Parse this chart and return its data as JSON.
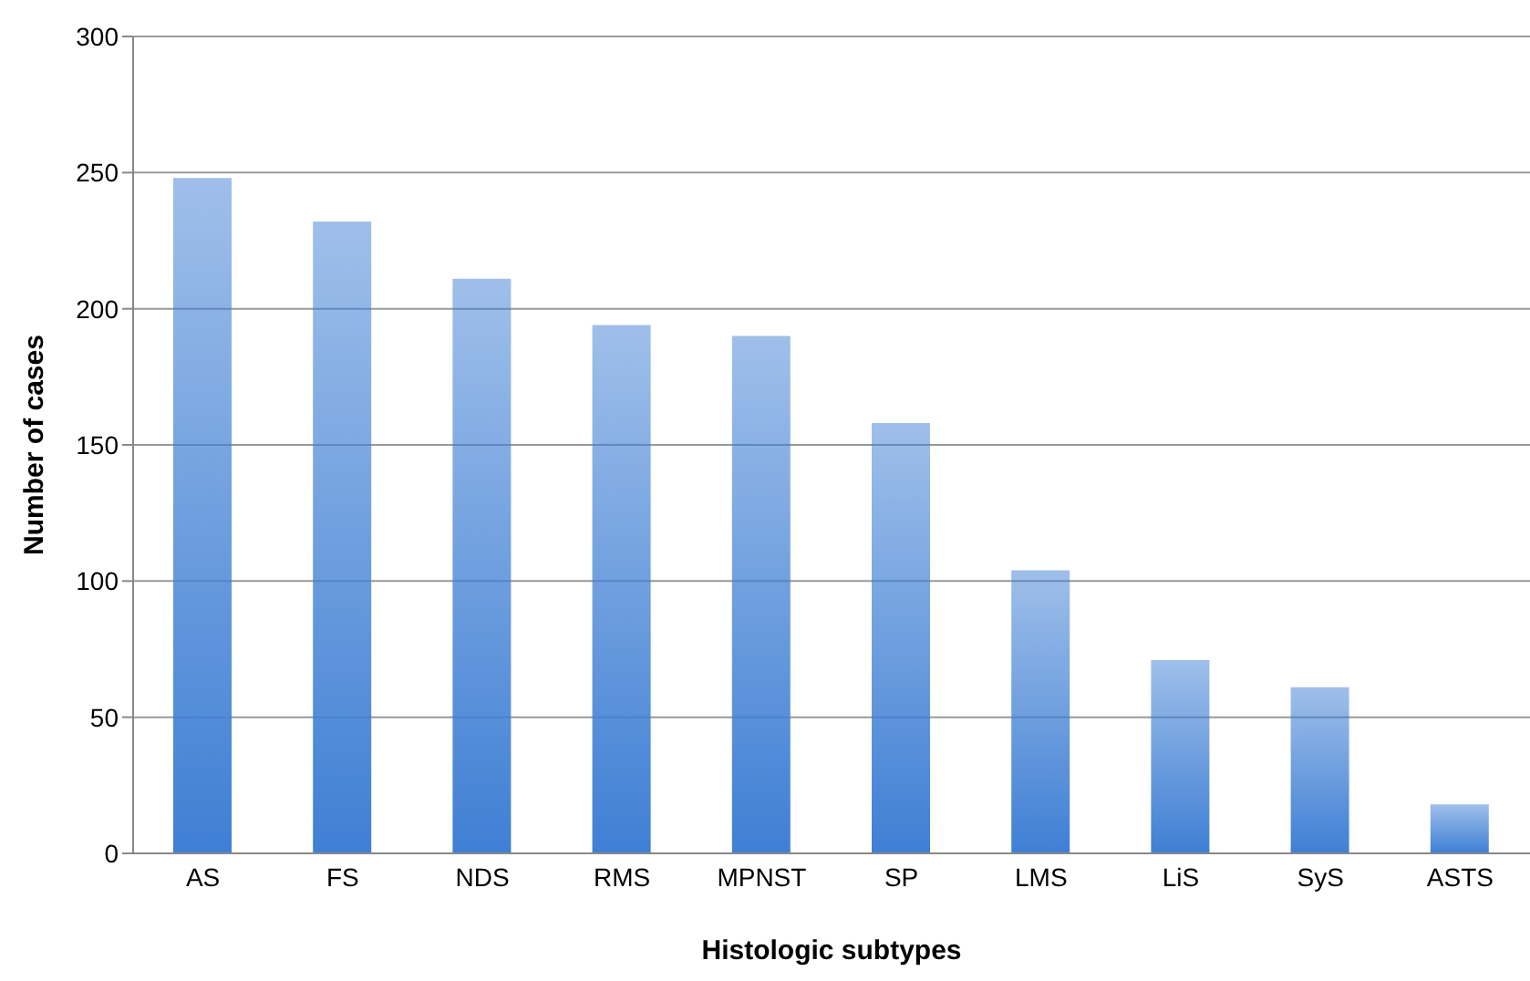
{
  "chart_data": {
    "type": "bar",
    "xlabel": "Histologic subtypes",
    "ylabel": "Number of cases",
    "categories": [
      "AS",
      "FS",
      "NDS",
      "RMS",
      "MPNST",
      "SP",
      "LMS",
      "LiS",
      "SyS",
      "ASTS"
    ],
    "values": [
      248,
      232,
      211,
      194,
      190,
      158,
      104,
      71,
      61,
      18
    ],
    "color": "#3f7fd4",
    "ylim": [
      0,
      300
    ],
    "yticks": [
      0,
      50,
      100,
      150,
      200,
      250,
      300
    ],
    "grid": "y"
  }
}
